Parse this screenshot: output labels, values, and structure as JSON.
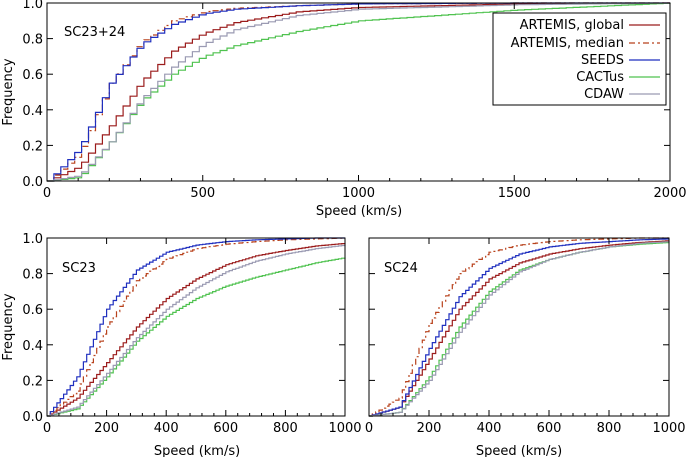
{
  "chart_data": [
    {
      "type": "line",
      "title": "SC23+24",
      "xlabel": "Speed (km/s)",
      "ylabel": "Frequency",
      "xlim": [
        0,
        2000
      ],
      "ylim": [
        0,
        1.0
      ],
      "xticks": [
        "0",
        "500",
        "1000",
        "1500",
        "2000"
      ],
      "yticks": [
        "0.0",
        "0.2",
        "0.4",
        "0.6",
        "0.8",
        "1.0"
      ],
      "legend": "top-right",
      "series": [
        {
          "name": "ARTEMIS, global",
          "color": "#9b1c1c",
          "dash": "",
          "x": [
            0,
            100,
            200,
            300,
            400,
            500,
            600,
            800,
            1000,
            1500,
            2000
          ],
          "values": [
            0.0,
            0.08,
            0.31,
            0.56,
            0.73,
            0.83,
            0.89,
            0.95,
            0.975,
            0.995,
            1.0
          ]
        },
        {
          "name": "ARTEMIS, median",
          "color": "#b8421c",
          "dash": "6,3,2,3",
          "x": [
            0,
            100,
            200,
            300,
            400,
            500,
            600,
            800,
            1000,
            1500,
            2000
          ],
          "values": [
            0.0,
            0.15,
            0.55,
            0.78,
            0.9,
            0.95,
            0.97,
            0.985,
            0.995,
            1.0,
            1.0
          ]
        },
        {
          "name": "SEEDS",
          "color": "#1f2fbf",
          "dash": "",
          "x": [
            0,
            100,
            200,
            300,
            400,
            500,
            600,
            800,
            1000,
            1500,
            2000
          ],
          "values": [
            0.0,
            0.18,
            0.55,
            0.77,
            0.88,
            0.94,
            0.965,
            0.985,
            0.995,
            1.0,
            1.0
          ]
        },
        {
          "name": "CACTus",
          "color": "#4fc24f",
          "dash": "",
          "x": [
            0,
            100,
            200,
            300,
            400,
            500,
            600,
            800,
            1000,
            1500,
            2000
          ],
          "values": [
            0.0,
            0.02,
            0.22,
            0.45,
            0.6,
            0.7,
            0.76,
            0.84,
            0.9,
            0.96,
            1.0
          ]
        },
        {
          "name": "CDAW",
          "color": "#9a9ab2",
          "dash": "",
          "x": [
            0,
            100,
            200,
            300,
            400,
            500,
            600,
            800,
            1000,
            1500,
            2000
          ],
          "values": [
            0.0,
            0.03,
            0.22,
            0.46,
            0.64,
            0.77,
            0.85,
            0.93,
            0.965,
            0.99,
            1.0
          ]
        }
      ]
    },
    {
      "type": "line",
      "title": "SC23",
      "xlabel": "Speed (km/s)",
      "ylabel": "Frequency",
      "xlim": [
        0,
        1000
      ],
      "ylim": [
        0,
        1.0
      ],
      "xticks": [
        "0",
        "200",
        "400",
        "600",
        "800",
        "1000"
      ],
      "yticks": [
        "0.0",
        "0.2",
        "0.4",
        "0.6",
        "0.8",
        "1.0"
      ],
      "series": [
        {
          "name": "ARTEMIS, global",
          "color": "#9b1c1c",
          "dash": "",
          "x": [
            0,
            100,
            200,
            300,
            400,
            500,
            600,
            700,
            800,
            900,
            1000
          ],
          "values": [
            0.0,
            0.1,
            0.3,
            0.5,
            0.66,
            0.77,
            0.85,
            0.9,
            0.93,
            0.955,
            0.97
          ]
        },
        {
          "name": "ARTEMIS, median",
          "color": "#b8421c",
          "dash": "6,3,2,3",
          "x": [
            0,
            100,
            200,
            300,
            400,
            500,
            600,
            700,
            800,
            900,
            1000
          ],
          "values": [
            0.0,
            0.14,
            0.5,
            0.76,
            0.88,
            0.94,
            0.965,
            0.98,
            0.99,
            0.995,
            1.0
          ]
        },
        {
          "name": "SEEDS",
          "color": "#1f2fbf",
          "dash": "",
          "x": [
            0,
            100,
            200,
            300,
            400,
            500,
            600,
            700,
            800,
            900,
            1000
          ],
          "values": [
            0.0,
            0.22,
            0.6,
            0.82,
            0.92,
            0.96,
            0.98,
            0.99,
            0.995,
            1.0,
            1.0
          ]
        },
        {
          "name": "CACTus",
          "color": "#4fc24f",
          "dash": "",
          "x": [
            0,
            100,
            200,
            300,
            400,
            500,
            600,
            700,
            800,
            900,
            1000
          ],
          "values": [
            0.0,
            0.04,
            0.22,
            0.42,
            0.56,
            0.66,
            0.73,
            0.78,
            0.82,
            0.86,
            0.89
          ]
        },
        {
          "name": "CDAW",
          "color": "#9a9ab2",
          "dash": "",
          "x": [
            0,
            100,
            200,
            300,
            400,
            500,
            600,
            700,
            800,
            900,
            1000
          ],
          "values": [
            0.0,
            0.05,
            0.24,
            0.44,
            0.6,
            0.72,
            0.81,
            0.87,
            0.91,
            0.94,
            0.96
          ]
        }
      ]
    },
    {
      "type": "line",
      "title": "SC24",
      "xlabel": "Speed (km/s)",
      "ylabel": "",
      "xlim": [
        0,
        1000
      ],
      "ylim": [
        0,
        1.0
      ],
      "xticks": [
        "0",
        "200",
        "400",
        "600",
        "800",
        "1000"
      ],
      "yticks": [],
      "series": [
        {
          "name": "ARTEMIS, global",
          "color": "#9b1c1c",
          "dash": "",
          "x": [
            0,
            100,
            200,
            300,
            400,
            500,
            600,
            700,
            800,
            900,
            1000
          ],
          "values": [
            0.0,
            0.05,
            0.32,
            0.6,
            0.77,
            0.86,
            0.91,
            0.94,
            0.96,
            0.975,
            0.985
          ]
        },
        {
          "name": "ARTEMIS, median",
          "color": "#b8421c",
          "dash": "6,3,2,3",
          "x": [
            0,
            100,
            200,
            300,
            400,
            500,
            600,
            700,
            800,
            900,
            1000
          ],
          "values": [
            0.0,
            0.1,
            0.52,
            0.8,
            0.92,
            0.96,
            0.98,
            0.99,
            0.995,
            1.0,
            1.0
          ]
        },
        {
          "name": "SEEDS",
          "color": "#1f2fbf",
          "dash": "",
          "x": [
            0,
            100,
            200,
            300,
            400,
            500,
            600,
            700,
            800,
            900,
            1000
          ],
          "values": [
            0.0,
            0.05,
            0.38,
            0.67,
            0.83,
            0.91,
            0.95,
            0.97,
            0.98,
            0.99,
            0.995
          ]
        },
        {
          "name": "CACTus",
          "color": "#4fc24f",
          "dash": "",
          "x": [
            0,
            100,
            200,
            300,
            400,
            500,
            600,
            700,
            800,
            900,
            1000
          ],
          "values": [
            0.0,
            0.02,
            0.22,
            0.5,
            0.7,
            0.82,
            0.88,
            0.92,
            0.95,
            0.965,
            0.975
          ]
        },
        {
          "name": "CDAW",
          "color": "#9a9ab2",
          "dash": "",
          "x": [
            0,
            100,
            200,
            300,
            400,
            500,
            600,
            700,
            800,
            900,
            1000
          ],
          "values": [
            0.0,
            0.02,
            0.2,
            0.47,
            0.68,
            0.81,
            0.88,
            0.92,
            0.95,
            0.97,
            0.98
          ]
        }
      ]
    }
  ]
}
